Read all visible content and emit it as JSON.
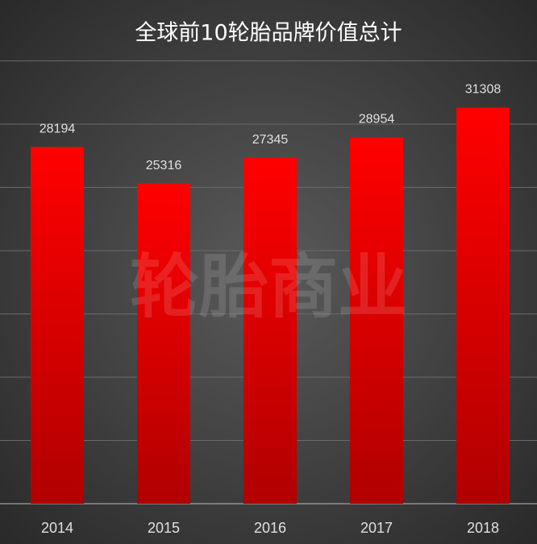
{
  "chart_data": {
    "type": "bar",
    "title": "全球前10轮胎品牌价值总计",
    "watermark": "轮胎商业",
    "categories": [
      "2014",
      "2015",
      "2016",
      "2017",
      "2018"
    ],
    "values": [
      28194,
      25316,
      27345,
      28954,
      31308
    ],
    "color": "#ff0000",
    "ylim": [
      0,
      35000
    ],
    "yticks": [
      0,
      5000,
      10000,
      15000,
      20000,
      25000,
      30000,
      35000
    ],
    "grid": true,
    "ytick_labels": false
  }
}
